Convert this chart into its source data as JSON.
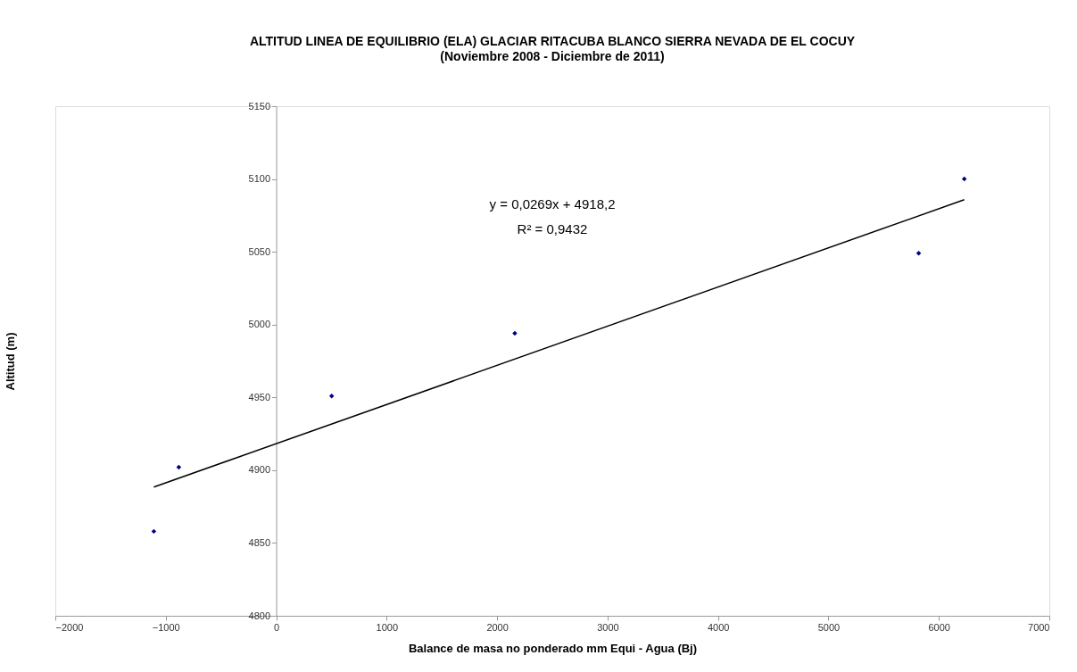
{
  "chart_data": {
    "type": "scatter",
    "title": "ALTITUD LINEA DE EQUILIBRIO (ELA) GLACIAR RITACUBA BLANCO SIERRA NEVADA DE EL COCUY",
    "subtitle": "(Noviembre 2008 - Diciembre de 2011)",
    "xlabel": "Balance de masa no ponderado mm Equi - Agua (Bj)",
    "ylabel": "Altitud (m)",
    "series": [
      {
        "color": "#000080",
        "marker": "diamond",
        "x": [
          -1108,
          -882,
          502,
          2160,
          5817,
          6230
        ],
        "values": [
          4858,
          4902,
          4951,
          4994,
          5049,
          5100
        ]
      },
      {
        "type": "line",
        "color": "#000000",
        "line_style": "solid",
        "x": [
          -1108,
          6230
        ],
        "values": [
          4888.4,
          5085.8
        ]
      }
    ],
    "annotations": [
      "y = 0,0269x + 4918,2",
      "R² = 0,9432"
    ],
    "xlim": [
      -2000,
      7000
    ],
    "xticks": [
      -2000,
      -1000,
      0,
      1000,
      2000,
      3000,
      4000,
      5000,
      6000,
      7000
    ],
    "ylim": [
      4800,
      5150
    ],
    "yticks": [
      4800,
      4850,
      4900,
      4950,
      5000,
      5050,
      5100,
      5150
    ],
    "grid": false
  }
}
